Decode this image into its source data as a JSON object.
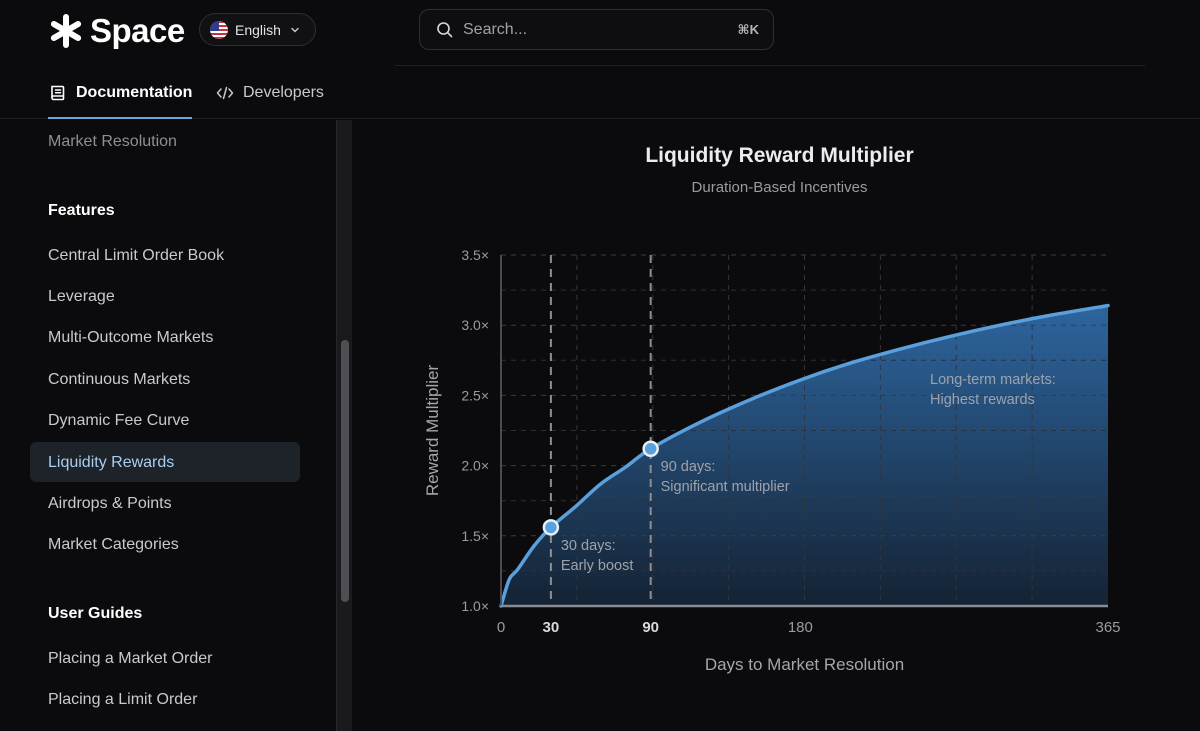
{
  "header": {
    "brand": "Space",
    "language": "English",
    "search_placeholder": "Search...",
    "search_shortcut": "⌘K"
  },
  "tabs": [
    {
      "label": "Documentation",
      "icon": "book-icon",
      "active": true
    },
    {
      "label": "Developers",
      "icon": "code-icon",
      "active": false
    }
  ],
  "sidebar": {
    "prev_item": "Market Resolution",
    "sections": [
      {
        "heading": "Features",
        "items": [
          "Central Limit Order Book",
          "Leverage",
          "Multi-Outcome Markets",
          "Continuous Markets",
          "Dynamic Fee Curve",
          "Liquidity Rewards",
          "Airdrops & Points",
          "Market Categories"
        ]
      },
      {
        "heading": "User Guides",
        "items": [
          "Placing a Market Order",
          "Placing a Limit Order"
        ]
      }
    ],
    "active_item": "Liquidity Rewards"
  },
  "colors": {
    "accent": "#5aa0dc",
    "active_bg": "#1e2229",
    "active_text": "#a9cdf0"
  },
  "chart_data": {
    "type": "area",
    "title": "Liquidity Reward Multiplier",
    "subtitle": "Duration-Based Incentives",
    "xlabel": "Days to Market Resolution",
    "ylabel": "Reward Multiplier",
    "xlim": [
      0,
      365
    ],
    "ylim": [
      1.0,
      3.5
    ],
    "x_ticks": [
      {
        "value": 0,
        "label": "0",
        "bold": false
      },
      {
        "value": 30,
        "label": "30",
        "bold": true
      },
      {
        "value": 90,
        "label": "90",
        "bold": true
      },
      {
        "value": 180,
        "label": "180",
        "bold": false
      },
      {
        "value": 365,
        "label": "365",
        "bold": false
      }
    ],
    "y_ticks": [
      {
        "value": 1.0,
        "label": "1.0×"
      },
      {
        "value": 1.5,
        "label": "1.5×"
      },
      {
        "value": 2.0,
        "label": "2.0×"
      },
      {
        "value": 2.5,
        "label": "2.5×"
      },
      {
        "value": 3.0,
        "label": "3.0×"
      },
      {
        "value": 3.5,
        "label": "3.5×"
      }
    ],
    "grid": true,
    "series": [
      {
        "x": [
          0,
          5,
          10,
          20,
          30,
          45,
          60,
          75,
          90,
          120,
          150,
          180,
          210,
          240,
          270,
          300,
          330,
          365
        ],
        "y": [
          1.0,
          1.19,
          1.26,
          1.43,
          1.56,
          1.71,
          1.87,
          1.99,
          2.12,
          2.31,
          2.47,
          2.61,
          2.73,
          2.83,
          2.92,
          3.0,
          3.07,
          3.14
        ]
      }
    ],
    "markers": [
      {
        "x": 30,
        "y": 1.56
      },
      {
        "x": 90,
        "y": 2.12
      }
    ],
    "vlines": [
      30,
      90
    ],
    "annotations": [
      {
        "text": [
          "30 days:",
          "Early boost"
        ],
        "x": 36,
        "y": 1.4
      },
      {
        "text": [
          "90 days:",
          "Significant multiplier"
        ],
        "x": 96,
        "y": 1.96
      },
      {
        "text": [
          "Long-term markets:",
          "Highest rewards"
        ],
        "x": 258,
        "y": 2.58
      }
    ]
  }
}
